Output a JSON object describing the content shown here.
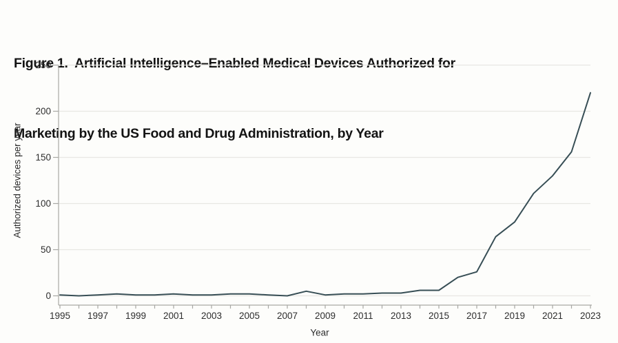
{
  "figure": {
    "title_line1": "Figure 1.  Artificial Intelligence–Enabled Medical Devices Authorized for",
    "title_line2": "Marketing by the US Food and Drug Administration, by Year"
  },
  "chart_data": {
    "type": "line",
    "title": "Figure 1. Artificial Intelligence–Enabled Medical Devices Authorized for Marketing by the US Food and Drug Administration, by Year",
    "xlabel": "Year",
    "ylabel": "Authorized devices per year",
    "x": [
      1995,
      1996,
      1997,
      1998,
      1999,
      2000,
      2001,
      2002,
      2003,
      2004,
      2005,
      2006,
      2007,
      2008,
      2009,
      2010,
      2011,
      2012,
      2013,
      2014,
      2015,
      2016,
      2017,
      2018,
      2019,
      2020,
      2021,
      2022,
      2023
    ],
    "values": [
      1,
      0,
      1,
      2,
      1,
      1,
      2,
      1,
      1,
      2,
      2,
      1,
      0,
      5,
      1,
      2,
      2,
      3,
      3,
      6,
      6,
      20,
      26,
      64,
      80,
      111,
      130,
      156,
      220
    ],
    "ylim": [
      0,
      250
    ],
    "yticks": [
      0,
      50,
      100,
      150,
      200,
      250
    ],
    "xticks_labeled": [
      1995,
      1997,
      1999,
      2001,
      2003,
      2005,
      2007,
      2009,
      2011,
      2013,
      2015,
      2017,
      2019,
      2021,
      2023
    ],
    "x_minor_ticks": "every year 1995-2023",
    "grid": "horizontal gridlines at every y tick",
    "legend_position": "none",
    "line_color": "#374e55"
  },
  "style": {
    "background": "#fdfdfb",
    "grid_color": "#e8e7e3",
    "axis_color": "#a8a8a4",
    "tick_text_color": "#2d2d2d",
    "title_color": "#131313"
  }
}
